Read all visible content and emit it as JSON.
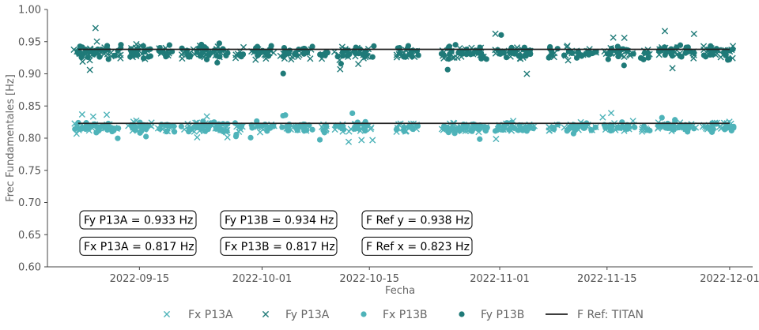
{
  "chart_data": {
    "type": "scatter",
    "xlabel": "Fecha",
    "ylabel": "Frec Fundamentales [Hz]",
    "xlim": [
      "2022-09-03",
      "2022-12-04"
    ],
    "ylim": [
      0.6,
      1.0
    ],
    "yticks": [
      0.6,
      0.65,
      0.7,
      0.75,
      0.8,
      0.85,
      0.9,
      0.95,
      1.0
    ],
    "ytick_labels": [
      "0.60",
      "0.65",
      "0.70",
      "0.75",
      "0.80",
      "0.85",
      "0.90",
      "0.95",
      "1.00"
    ],
    "xticks": [
      "2022-09-15",
      "2022-10-01",
      "2022-10-15",
      "2022-11-01",
      "2022-11-15",
      "2022-12-01"
    ],
    "xtick_labels": [
      "2022-09-15",
      "2022-10-01",
      "2022-10-15",
      "2022-11-01",
      "2022-11-15",
      "2022-12-01"
    ],
    "grid": false,
    "legend_position": "bottom",
    "measurement_days": [
      "2022-09-07",
      "2022-09-08",
      "2022-09-09",
      "2022-09-10",
      "2022-09-11",
      "2022-09-12",
      "2022-09-14",
      "2022-09-15",
      "2022-09-16",
      "2022-09-18",
      "2022-09-19",
      "2022-09-21",
      "2022-09-22",
      "2022-09-23",
      "2022-09-24",
      "2022-09-25",
      "2022-09-26",
      "2022-09-28",
      "2022-09-30",
      "2022-10-01",
      "2022-10-02",
      "2022-10-04",
      "2022-10-05",
      "2022-10-06",
      "2022-10-07",
      "2022-10-09",
      "2022-10-11",
      "2022-10-12",
      "2022-10-13",
      "2022-10-14",
      "2022-10-15",
      "2022-10-19",
      "2022-10-20",
      "2022-10-21",
      "2022-10-25",
      "2022-10-26",
      "2022-10-27",
      "2022-10-28",
      "2022-10-29",
      "2022-10-30",
      "2022-11-01",
      "2022-11-02",
      "2022-11-03",
      "2022-11-04",
      "2022-11-05",
      "2022-11-08",
      "2022-11-10",
      "2022-11-11",
      "2022-11-12",
      "2022-11-13",
      "2022-11-15",
      "2022-11-16",
      "2022-11-17",
      "2022-11-18",
      "2022-11-20",
      "2022-11-22",
      "2022-11-23",
      "2022-11-24",
      "2022-11-25",
      "2022-11-26",
      "2022-11-28",
      "2022-11-29",
      "2022-11-30",
      "2022-12-01"
    ],
    "series": [
      {
        "name": "Fx P13A",
        "marker": "x",
        "color": "#4eb3b9",
        "center": 0.817,
        "spread": 0.006
      },
      {
        "name": "Fy P13A",
        "marker": "x",
        "color": "#1f7a78",
        "center": 0.933,
        "spread": 0.008
      },
      {
        "name": "Fx P13B",
        "marker": "o",
        "color": "#4eb3b9",
        "center": 0.817,
        "spread": 0.006
      },
      {
        "name": "Fy P13B",
        "marker": "o",
        "color": "#1f7a78",
        "center": 0.934,
        "spread": 0.009
      }
    ],
    "reference_lines": [
      {
        "name": "F Ref: TITAN",
        "y": 0.938,
        "x_start": "2022-09-07",
        "x_end": "2022-12-01",
        "color": "#222222"
      },
      {
        "name": "F Ref: TITAN",
        "y": 0.823,
        "x_start": "2022-09-07",
        "x_end": "2022-12-01",
        "color": "#222222"
      }
    ],
    "annotations": [
      {
        "text": "Fy P13A = 0.933 Hz",
        "anchor_y": 0.673
      },
      {
        "text": "Fx P13A = 0.817 Hz",
        "anchor_y": 0.632
      },
      {
        "text": "Fy P13B = 0.934 Hz",
        "anchor_y": 0.673
      },
      {
        "text": "Fx P13B = 0.817 Hz",
        "anchor_y": 0.632
      },
      {
        "text": "F Ref y = 0.938 Hz",
        "anchor_y": 0.673
      },
      {
        "text": "F Ref x = 0.823 Hz",
        "anchor_y": 0.632
      }
    ],
    "legend": [
      "Fx P13A",
      "Fy P13A",
      "Fx P13B",
      "Fy P13B",
      "F Ref: TITAN"
    ]
  }
}
